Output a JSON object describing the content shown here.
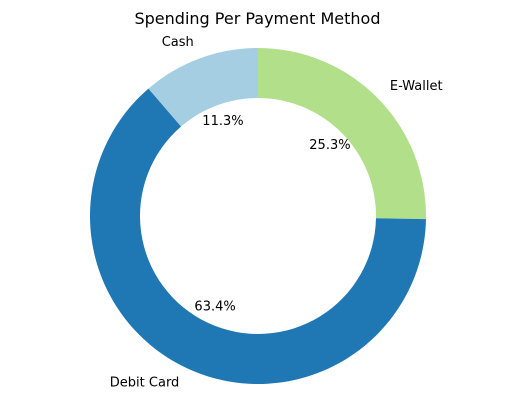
{
  "chart_data": {
    "type": "pie",
    "variant": "donut",
    "title": "Spending Per Payment Method",
    "slices": [
      {
        "label": "E-Wallet",
        "value": 25.3,
        "pct_label": "25.3%",
        "color": "#b2df8a"
      },
      {
        "label": "Debit Card",
        "value": 63.4,
        "pct_label": "63.4%",
        "color": "#1f78b4"
      },
      {
        "label": "Cash",
        "value": 11.3,
        "pct_label": "11.3%",
        "color": "#a6cee3"
      }
    ],
    "start_angle_deg": 90,
    "direction": "clockwise"
  }
}
